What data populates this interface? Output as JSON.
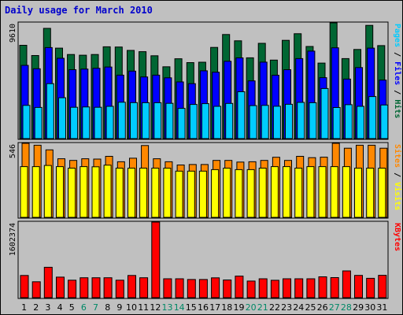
{
  "chart_data": {
    "type": "bar",
    "title": "Daily usage for March 2010",
    "categories": [
      "1",
      "2",
      "3",
      "4",
      "5",
      "6",
      "7",
      "8",
      "9",
      "10",
      "11",
      "12",
      "13",
      "14",
      "15",
      "16",
      "17",
      "18",
      "19",
      "20",
      "21",
      "22",
      "23",
      "24",
      "25",
      "26",
      "27",
      "28",
      "29",
      "30",
      "31"
    ],
    "weekend_days": [
      "6",
      "7",
      "13",
      "14",
      "20",
      "21",
      "27",
      "28"
    ],
    "colors": {
      "hits": "#006633",
      "files": "#0000FF",
      "pages": "#00CCFF",
      "visits": "#FFFF00",
      "sites": "#FF8800",
      "kbytes": "#FF0000",
      "weekday_tick": "#000000",
      "weekend_tick": "#008866",
      "title": "#0000CC",
      "panel_bg": "#C0C0C0",
      "border": "#000000"
    },
    "panels": [
      {
        "id": "hits-files-pages",
        "ymax_label": "9610",
        "ymax": 9610,
        "label_parts": [
          {
            "text": "Pages",
            "color": "#00CCFF"
          },
          {
            "text": " / ",
            "color": "#000000"
          },
          {
            "text": "Files",
            "color": "#0000FF"
          },
          {
            "text": " / ",
            "color": "#000000"
          },
          {
            "text": "Hits",
            "color": "#006633"
          }
        ],
        "series": [
          {
            "name": "Hits",
            "color": "#006633",
            "values": [
              7750,
              6900,
              9150,
              7510,
              6980,
              6920,
              6980,
              7620,
              7600,
              7320,
              7220,
              6880,
              5960,
              6630,
              6310,
              6340,
              7570,
              8640,
              8120,
              6710,
              7910,
              6520,
              8160,
              8710,
              7650,
              6270,
              9610,
              6640,
              7400,
              9400,
              7720
            ]
          },
          {
            "name": "Files",
            "color": "#0000FF",
            "values": [
              6080,
              5800,
              7560,
              6670,
              5720,
              5770,
              5840,
              5940,
              5270,
              5600,
              5120,
              5270,
              5050,
              4710,
              4560,
              5630,
              5510,
              6420,
              6700,
              4790,
              6350,
              5260,
              5720,
              6640,
              7260,
              5060,
              7540,
              4940,
              5900,
              7510,
              4860
            ]
          },
          {
            "name": "Pages",
            "color": "#00CCFF",
            "values": [
              2760,
              2590,
              4560,
              3390,
              2600,
              2630,
              2600,
              2680,
              3020,
              2990,
              2980,
              2980,
              2930,
              2510,
              2840,
              2900,
              2680,
              2920,
              3890,
              2740,
              2760,
              2690,
              2850,
              3010,
              2980,
              4160,
              2580,
              2820,
              2680,
              3490,
              2790
            ]
          }
        ]
      },
      {
        "id": "visits-sites",
        "ymax_label": "546",
        "ymax": 546,
        "label_parts": [
          {
            "text": "Sites",
            "color": "#FF8800"
          },
          {
            "text": " / ",
            "color": "#000000"
          },
          {
            "text": "Visits",
            "color": "#FFFF00"
          }
        ],
        "series": [
          {
            "name": "Sites",
            "color": "#FF8800",
            "values": [
              546,
              532,
              498,
              432,
              420,
              432,
              430,
              450,
              410,
              436,
              530,
              432,
              410,
              386,
              390,
              390,
              420,
              420,
              408,
              410,
              420,
              443,
              420,
              450,
              440,
              444,
              546,
              510,
              532,
              532,
              510
            ]
          },
          {
            "name": "Visits",
            "color": "#FFFF00",
            "values": [
              374,
              374,
              383,
              374,
              363,
              374,
              373,
              385,
              363,
              363,
              363,
              363,
              363,
              341,
              341,
              341,
              352,
              363,
              352,
              352,
              363,
              374,
              374,
              363,
              374,
              374,
              374,
              374,
              363,
              363,
              363
            ]
          }
        ]
      },
      {
        "id": "kbytes",
        "ymax_label": "1602374",
        "ymax": 1602374,
        "label_parts": [
          {
            "text": "KBytes",
            "color": "#FF0000"
          }
        ],
        "series": [
          {
            "name": "KBytes",
            "color": "#FF0000",
            "values": [
              470000,
              337000,
              645000,
              435000,
              370000,
              422000,
              422000,
              422000,
              370000,
              470000,
              422000,
              1602374,
              401000,
              401000,
              385000,
              385000,
              421000,
              375000,
              458000,
              352000,
              401000,
              369000,
              401000,
              401000,
              401000,
              442000,
              425000,
              567000,
              472000,
              411000,
              474000
            ]
          }
        ]
      }
    ]
  }
}
